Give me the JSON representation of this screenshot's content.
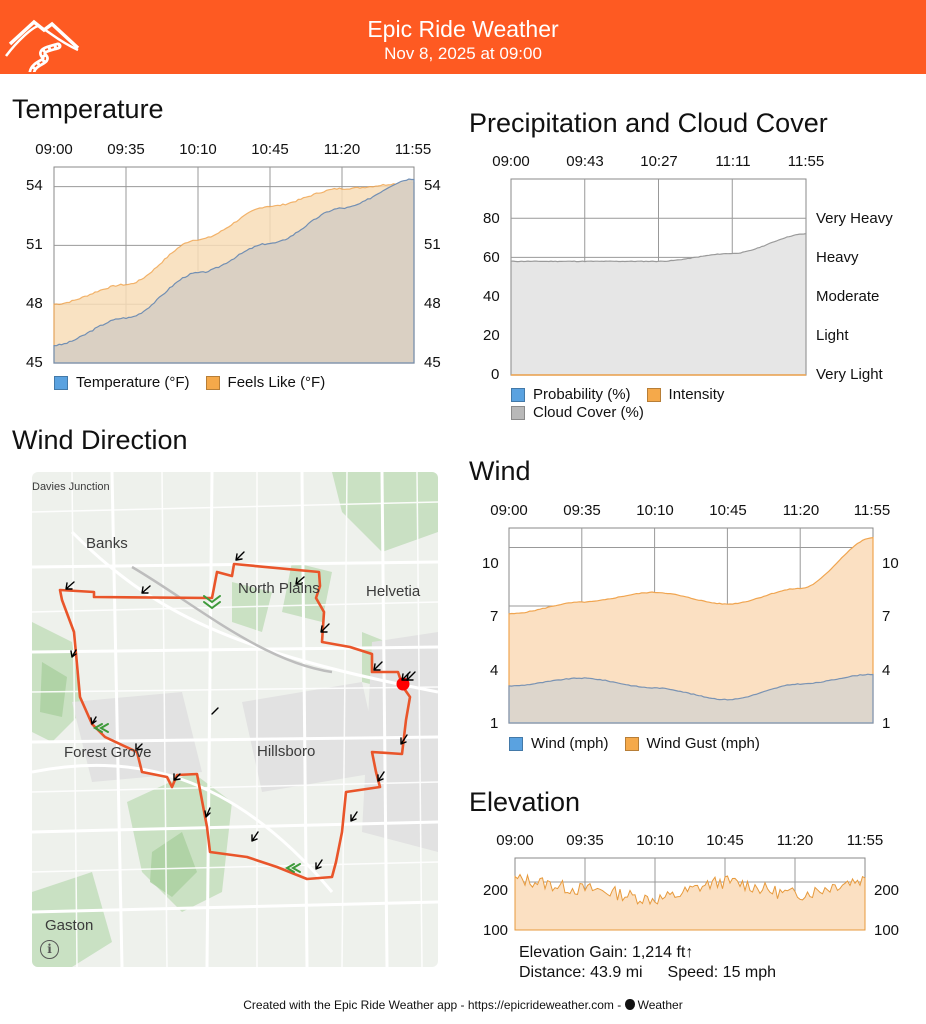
{
  "header": {
    "title": "Epic Ride Weather",
    "subtitle": "Nov 8, 2025 at 09:00",
    "color": "#fe5a22"
  },
  "temperature": {
    "title": "Temperature",
    "times": [
      "09:00",
      "09:35",
      "10:10",
      "10:45",
      "11:20",
      "11:55"
    ],
    "y_ticks": [
      "54",
      "51",
      "48",
      "45"
    ],
    "legend": [
      {
        "label": "Temperature (°F)",
        "color": "#5aa2e0"
      },
      {
        "label": "Feels Like (°F)",
        "color": "#f5a94a"
      }
    ]
  },
  "precipitation": {
    "title": "Precipitation and Cloud Cover",
    "times": [
      "09:00",
      "09:43",
      "10:27",
      "11:11",
      "11:55"
    ],
    "y_ticks": [
      "80",
      "60",
      "40",
      "20",
      "0"
    ],
    "intensity_labels": [
      "Very Heavy",
      "Heavy",
      "Moderate",
      "Light",
      "Very Light"
    ],
    "legend": [
      {
        "label": "Probability (%)",
        "color": "#5aa2e0"
      },
      {
        "label": "Intensity",
        "color": "#f5a94a"
      },
      {
        "label": "Cloud Cover (%)",
        "color": "#b8b8b8"
      }
    ]
  },
  "wind_direction": {
    "title": "Wind Direction",
    "places": [
      "Davies Junction",
      "Banks",
      "North Plains",
      "Helvetia",
      "Forest Grove",
      "Hillsboro",
      "Gaston"
    ],
    "info_icon": "info-icon"
  },
  "wind": {
    "title": "Wind",
    "times": [
      "09:00",
      "09:35",
      "10:10",
      "10:45",
      "11:20",
      "11:55"
    ],
    "y_ticks": [
      "10",
      "7",
      "4",
      "1"
    ],
    "legend": [
      {
        "label": "Wind (mph)",
        "color": "#5aa2e0"
      },
      {
        "label": "Wind Gust (mph)",
        "color": "#f5a94a"
      }
    ]
  },
  "elevation": {
    "title": "Elevation",
    "times": [
      "09:00",
      "09:35",
      "10:10",
      "10:45",
      "11:20",
      "11:55"
    ],
    "y_ticks": [
      "200",
      "100"
    ],
    "gain": "Elevation Gain: 1,214 ft↑",
    "distance": "Distance: 43.9 mi",
    "speed": "Speed: 15 mph"
  },
  "footer": {
    "text": "Created with the Epic Ride Weather app - https://epicrideweather.com - ",
    "weather_label": "Weather",
    "apple_icon": "apple-icon"
  },
  "chart_data": [
    {
      "type": "area",
      "title": "Temperature",
      "x": [
        "09:00",
        "09:35",
        "10:10",
        "10:45",
        "11:20",
        "11:55"
      ],
      "ylim": [
        45,
        55
      ],
      "series": [
        {
          "name": "Temperature (°F)",
          "values": [
            45.9,
            47.3,
            49.6,
            51.1,
            52.9,
            54.4
          ]
        },
        {
          "name": "Feels Like (°F)",
          "values": [
            48.0,
            49.0,
            51.3,
            53.0,
            53.9,
            54.2
          ]
        }
      ]
    },
    {
      "type": "area",
      "title": "Precipitation and Cloud Cover",
      "x": [
        "09:00",
        "09:43",
        "10:27",
        "11:11",
        "11:55"
      ],
      "ylim": [
        0,
        100
      ],
      "series": [
        {
          "name": "Probability (%)",
          "values": [
            0,
            0,
            0,
            0,
            0
          ]
        },
        {
          "name": "Intensity",
          "values": [
            0,
            0,
            0,
            0,
            0
          ]
        },
        {
          "name": "Cloud Cover (%)",
          "values": [
            58,
            58,
            58,
            62,
            72
          ]
        }
      ]
    },
    {
      "type": "area",
      "title": "Wind",
      "x": [
        "09:00",
        "09:35",
        "10:10",
        "10:45",
        "11:20",
        "11:55"
      ],
      "ylim": [
        1,
        11
      ],
      "series": [
        {
          "name": "Wind (mph)",
          "values": [
            2.9,
            3.3,
            2.8,
            2.2,
            3.0,
            3.5
          ]
        },
        {
          "name": "Wind Gust (mph)",
          "values": [
            6.6,
            7.2,
            7.7,
            7.1,
            7.9,
            10.5
          ]
        }
      ]
    },
    {
      "type": "area",
      "title": "Elevation",
      "x": [
        "09:00",
        "09:35",
        "10:10",
        "10:45",
        "11:20",
        "11:55"
      ],
      "ylim": [
        100,
        250
      ],
      "series": [
        {
          "name": "Elevation",
          "values": [
            205,
            185,
            165,
            200,
            175,
            205
          ]
        }
      ]
    }
  ]
}
